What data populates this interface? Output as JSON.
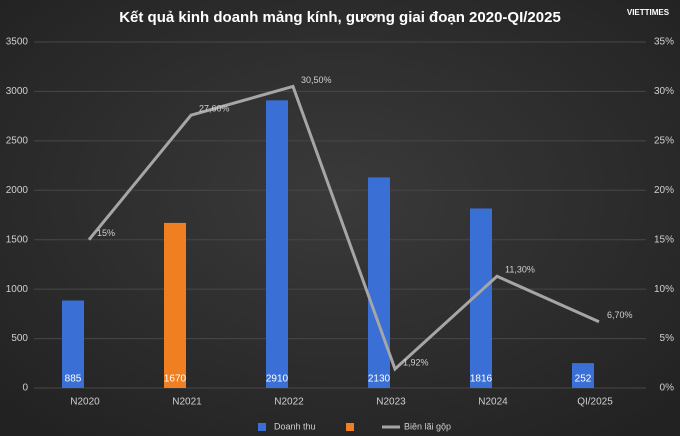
{
  "chart_data": {
    "type": "bar_line",
    "title": "Kết quả kinh doanh mảng kính, gương giai đoạn 2020-QI/2025",
    "watermark": "VIETTIMES",
    "categories": [
      "N2020",
      "N2021",
      "N2022",
      "N2023",
      "N2024",
      "QI/2025"
    ],
    "series": [
      {
        "name": "Doanh thu",
        "type": "bar",
        "color": "#3a6fd6",
        "colors": [
          "#3a6fd6",
          "#f07f22",
          "#3a6fd6",
          "#3a6fd6",
          "#3a6fd6",
          "#3a6fd6"
        ],
        "values": [
          885,
          1670,
          2910,
          2130,
          1816,
          252
        ]
      },
      {
        "name": "Biên lãi gộp",
        "type": "line",
        "axis": "y2",
        "color": "#a6a6a6",
        "values": [
          15,
          27.6,
          30.5,
          1.92,
          11.3,
          6.7
        ],
        "value_labels": [
          "15%",
          "27,60%",
          "30,50%",
          "1,92%",
          "11,30%",
          "6,70%"
        ]
      }
    ],
    "ylim": [
      0,
      3500
    ],
    "yticks": [
      0,
      500,
      1000,
      1500,
      2000,
      2500,
      3000,
      3500
    ],
    "y2lim": [
      0,
      35
    ],
    "y2ticks": [
      {
        "value": 0,
        "label": "0%"
      },
      {
        "value": 5,
        "label": "5%"
      },
      {
        "value": 10,
        "label": "10%"
      },
      {
        "value": 15,
        "label": "15%"
      },
      {
        "value": 20,
        "label": "20%"
      },
      {
        "value": 25,
        "label": "25%"
      },
      {
        "value": 30,
        "label": "30%"
      },
      {
        "value": 35,
        "label": "35%"
      }
    ],
    "grid": true
  }
}
